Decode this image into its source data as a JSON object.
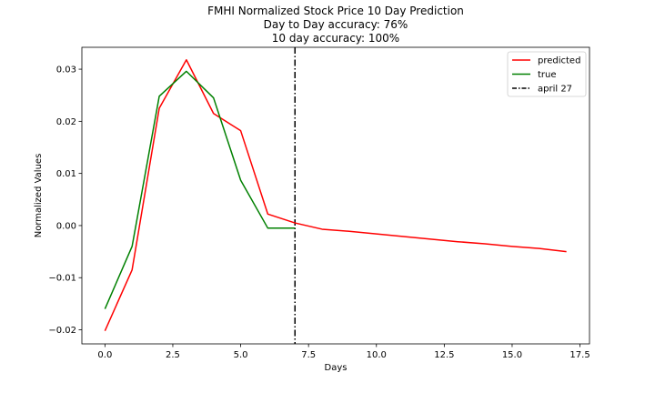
{
  "chart_data": {
    "type": "line",
    "title": [
      "FMHI Normalized Stock Price 10 Day Prediction",
      "Day to Day accuracy: 76%",
      "10 day accuracy: 100%"
    ],
    "xlabel": "Days",
    "ylabel": "Normalized Values",
    "xlim": [
      -0.85,
      17.85
    ],
    "ylim": [
      -0.0227,
      0.0342
    ],
    "xticks": [
      0.0,
      2.5,
      5.0,
      7.5,
      10.0,
      12.5,
      15.0,
      17.5
    ],
    "xtick_labels": [
      "0.0",
      "2.5",
      "5.0",
      "7.5",
      "10.0",
      "12.5",
      "15.0",
      "17.5"
    ],
    "yticks": [
      -0.02,
      -0.01,
      0.0,
      0.01,
      0.02,
      0.03
    ],
    "ytick_labels": [
      "−0.02",
      "−0.01",
      "0.00",
      "0.01",
      "0.02",
      "0.03"
    ],
    "series": [
      {
        "name": "predicted",
        "color": "#ff0000",
        "x": [
          0,
          1,
          2,
          3,
          4,
          5,
          6,
          7,
          8,
          9,
          10,
          11,
          12,
          13,
          14,
          15,
          16,
          17
        ],
        "y": [
          -0.0202,
          -0.0085,
          0.0225,
          0.0318,
          0.0215,
          0.0182,
          0.0022,
          0.0005,
          -0.0007,
          -0.0011,
          -0.0016,
          -0.0021,
          -0.0026,
          -0.0031,
          -0.0035,
          -0.004,
          -0.0044,
          -0.005
        ]
      },
      {
        "name": "true",
        "color": "#008000",
        "x": [
          0,
          1,
          2,
          3,
          4,
          5,
          6,
          7
        ],
        "y": [
          -0.016,
          -0.004,
          0.0248,
          0.0296,
          0.0245,
          0.0087,
          -0.0005,
          -0.0005
        ]
      }
    ],
    "vlines": [
      {
        "name": "april 27",
        "x": 7,
        "color": "#000000",
        "style": "dashdot"
      }
    ],
    "legend": {
      "position": "top-right",
      "entries": [
        "predicted",
        "true",
        "april 27"
      ]
    }
  }
}
